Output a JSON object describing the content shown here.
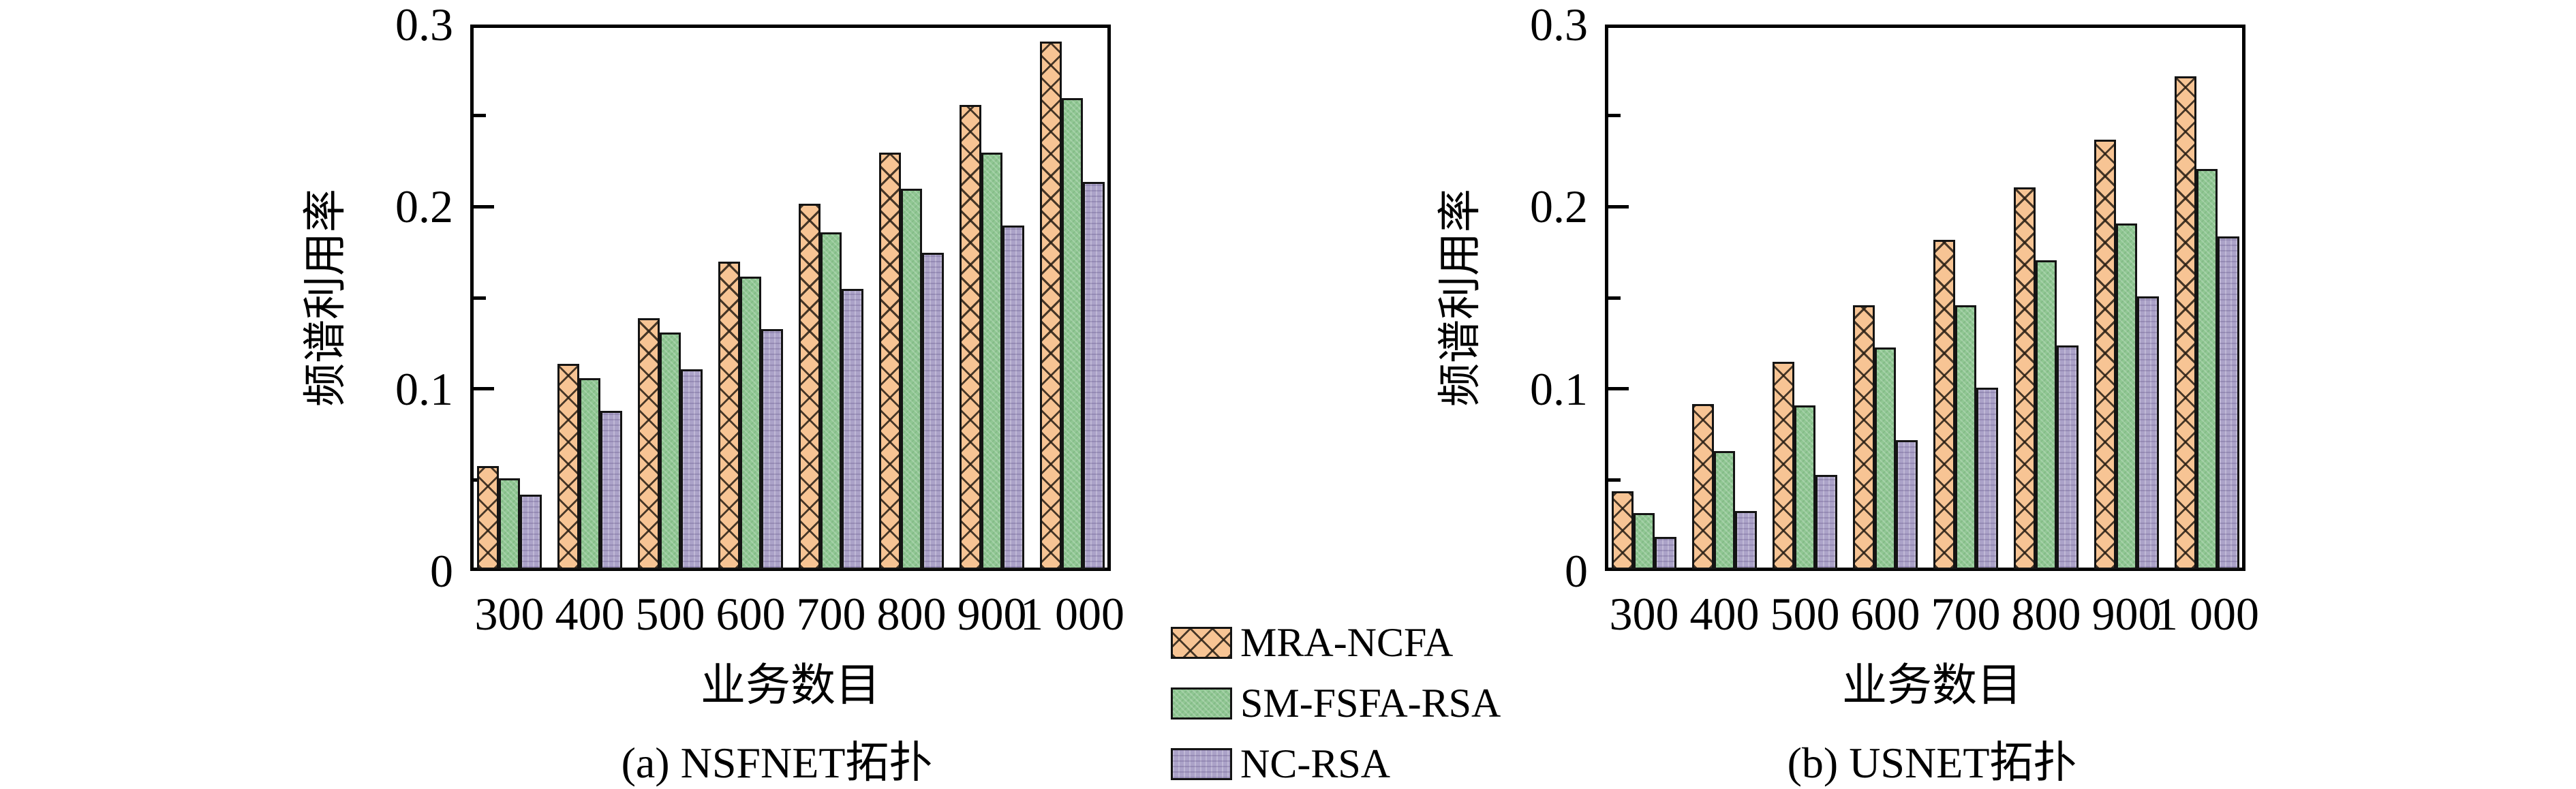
{
  "figure": {
    "background": "#ffffff",
    "axis_color": "#000000"
  },
  "colors": {
    "mra_ncfa": "#F7C494",
    "sm_fsfa_rsa": "#90C793",
    "nc_rsa": "#ABA2C8",
    "hatch": "#2A241C",
    "outline": "#141414"
  },
  "y_axis": {
    "label": "频谱利用率",
    "tick_labels": [
      "0",
      "0.1",
      "0.2",
      "0.3"
    ],
    "minor_tick_step": 0.05,
    "max": 0.3
  },
  "x_axis": {
    "label": "业务数目"
  },
  "legend": {
    "items": [
      {
        "label": "MRA-NCFA",
        "color": "#F7C494"
      },
      {
        "label": "SM-FSFA-RSA",
        "color": "#90C793"
      },
      {
        "label": "NC-RSA",
        "color": "#ABA2C8"
      }
    ]
  },
  "chart_data": [
    {
      "type": "bar",
      "title": "(a) NSFNET拓扑",
      "xlabel": "业务数目",
      "ylabel": "频谱利用率",
      "ylim": [
        0,
        0.3
      ],
      "grid": false,
      "categories": [
        "300",
        "400",
        "500",
        "600",
        "700",
        "800",
        "900",
        "1 000"
      ],
      "series": [
        {
          "name": "MRA-NCFA",
          "values": [
            0.057,
            0.113,
            0.138,
            0.169,
            0.201,
            0.229,
            0.255,
            0.29
          ]
        },
        {
          "name": "SM-FSFA-RSA",
          "values": [
            0.05,
            0.105,
            0.13,
            0.161,
            0.185,
            0.209,
            0.229,
            0.259
          ]
        },
        {
          "name": "NC-RSA",
          "values": [
            0.041,
            0.087,
            0.11,
            0.132,
            0.154,
            0.174,
            0.189,
            0.213
          ]
        }
      ]
    },
    {
      "type": "bar",
      "title": "(b) USNET拓扑",
      "xlabel": "业务数目",
      "ylabel": "频谱利用率",
      "ylim": [
        0,
        0.3
      ],
      "grid": false,
      "categories": [
        "300",
        "400",
        "500",
        "600",
        "700",
        "800",
        "900",
        "1 000"
      ],
      "series": [
        {
          "name": "MRA-NCFA",
          "values": [
            0.043,
            0.091,
            0.114,
            0.145,
            0.181,
            0.21,
            0.236,
            0.271
          ]
        },
        {
          "name": "SM-FSFA-RSA",
          "values": [
            0.031,
            0.065,
            0.09,
            0.122,
            0.145,
            0.17,
            0.19,
            0.22
          ]
        },
        {
          "name": "NC-RSA",
          "values": [
            0.018,
            0.032,
            0.052,
            0.071,
            0.1,
            0.123,
            0.15,
            0.183
          ]
        }
      ]
    }
  ]
}
